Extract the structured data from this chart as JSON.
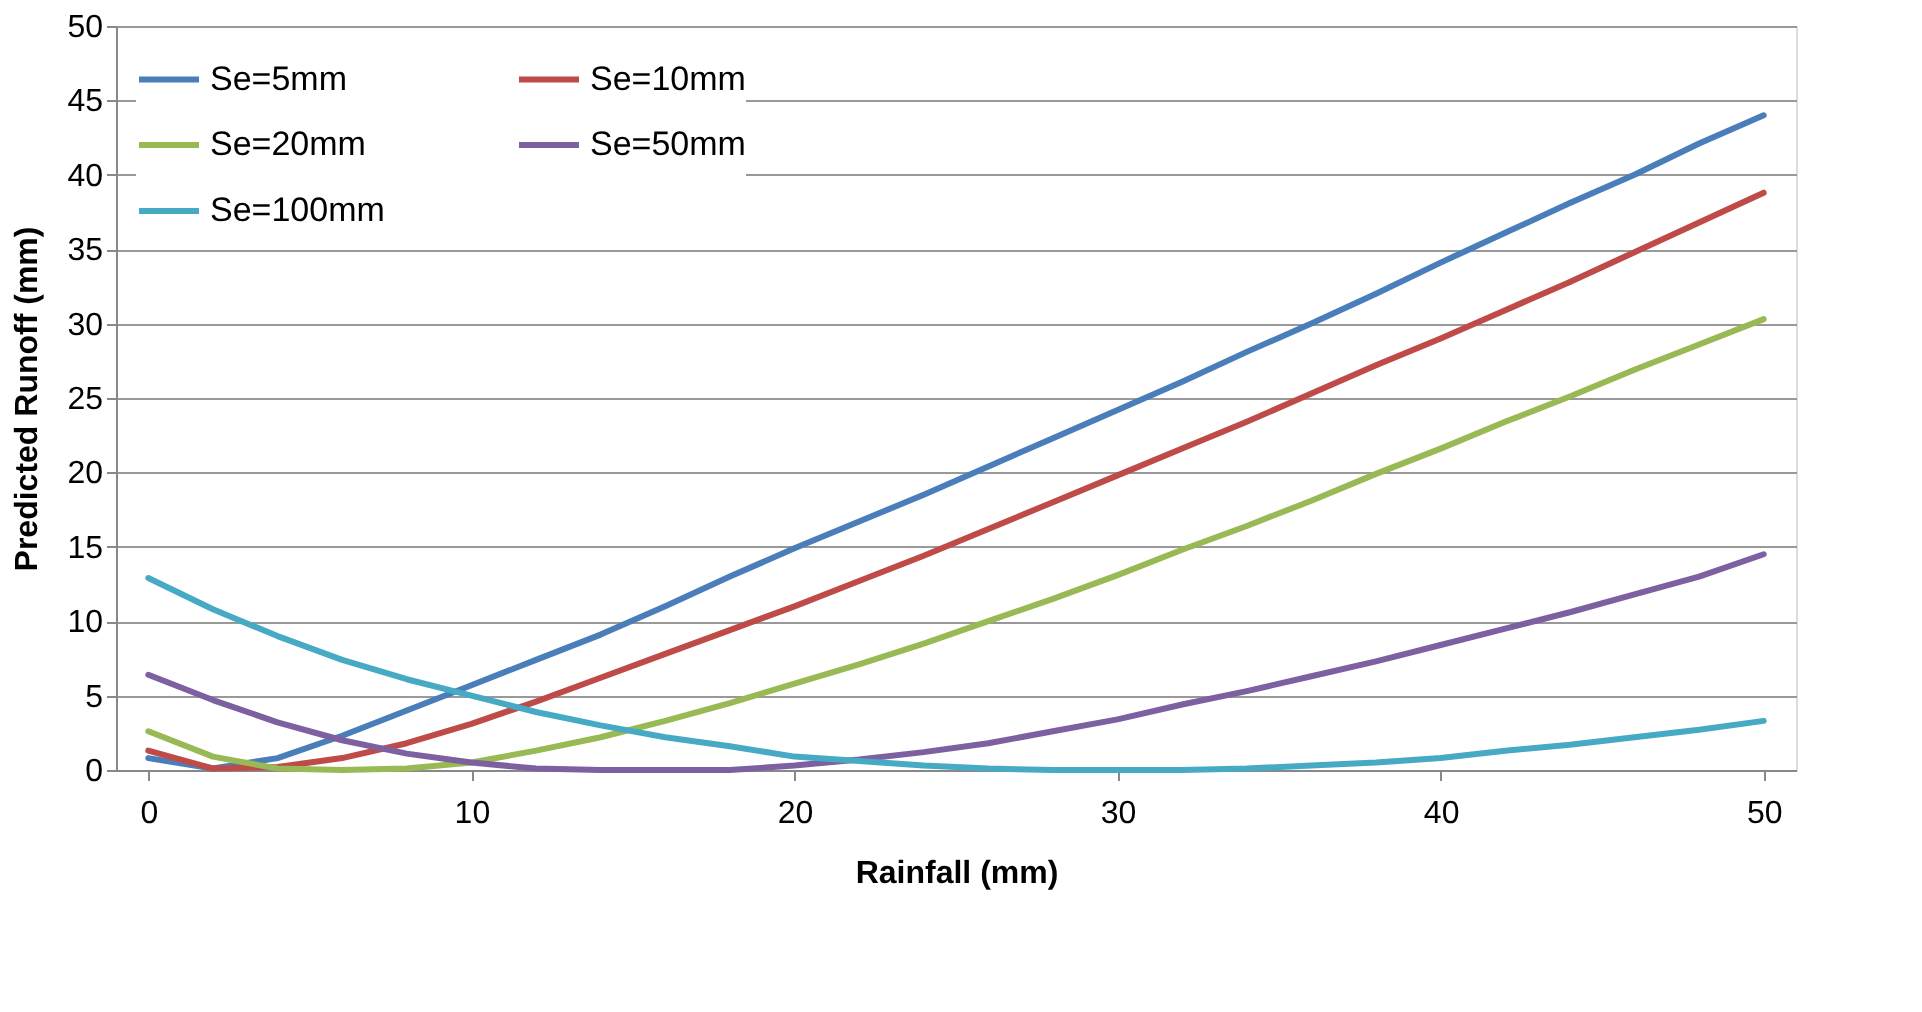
{
  "chart_data": {
    "type": "line",
    "xlabel": "Rainfall (mm)",
    "ylabel": "Predicted Runoff (mm)",
    "x": [
      0,
      2,
      4,
      6,
      8,
      10,
      12,
      14,
      16,
      18,
      20,
      22,
      24,
      26,
      28,
      30,
      32,
      34,
      36,
      38,
      40,
      42,
      44,
      46,
      48,
      50
    ],
    "series": [
      {
        "name": "Se=5mm",
        "color": "#4a7ebb",
        "values": [
          0.8,
          0.1,
          0.8,
          2.3,
          4.0,
          5.7,
          7.4,
          9.1,
          11,
          13,
          14.9,
          16.7,
          18.5,
          20.4,
          22.3,
          24.2,
          26.1,
          28.1,
          30,
          32,
          34.1,
          36.1,
          38.1,
          40,
          42.1,
          44
        ]
      },
      {
        "name": "Se=10mm",
        "color": "#be4b48",
        "values": [
          1.3,
          0.1,
          0.2,
          0.8,
          1.8,
          3.1,
          4.6,
          6.2,
          7.8,
          9.4,
          11,
          12.7,
          14.4,
          16.2,
          18,
          19.8,
          21.6,
          23.4,
          25.3,
          27.2,
          29,
          30.9,
          32.8,
          34.8,
          36.8,
          38.8
        ]
      },
      {
        "name": "Se=20mm",
        "color": "#98b954",
        "values": [
          2.6,
          0.9,
          0.1,
          0,
          0.1,
          0.5,
          1.3,
          2.2,
          3.3,
          4.5,
          5.8,
          7.1,
          8.5,
          10,
          11.5,
          13.1,
          14.8,
          16.4,
          18.1,
          19.9,
          21.6,
          23.4,
          25.1,
          26.9,
          28.6,
          30.3
        ]
      },
      {
        "name": "Se=50mm",
        "color": "#7d60a0",
        "values": [
          6.4,
          4.7,
          3.2,
          2.0,
          1.1,
          0.5,
          0.1,
          0,
          0,
          0,
          0.3,
          0.7,
          1.2,
          1.8,
          2.6,
          3.4,
          4.4,
          5.3,
          6.3,
          7.3,
          8.4,
          9.5,
          10.6,
          11.8,
          13,
          14.5
        ]
      },
      {
        "name": "Se=100mm",
        "color": "#46aac5",
        "values": [
          12.9,
          10.8,
          9.0,
          7.4,
          6.1,
          5.0,
          3.9,
          3.0,
          2.2,
          1.6,
          0.9,
          0.6,
          0.3,
          0.1,
          0,
          0,
          0,
          0.1,
          0.3,
          0.5,
          0.8,
          1.3,
          1.7,
          2.2,
          2.7,
          3.3
        ]
      }
    ],
    "xlim": [
      -1,
      51
    ],
    "xticks": [
      0,
      10,
      20,
      30,
      40,
      50
    ],
    "ylim": [
      0,
      50
    ],
    "yticks": [
      0,
      5,
      10,
      15,
      20,
      25,
      30,
      35,
      40,
      45,
      50
    ],
    "grid": "y",
    "legend": "top left",
    "marker": "none",
    "line_style": "solid"
  }
}
